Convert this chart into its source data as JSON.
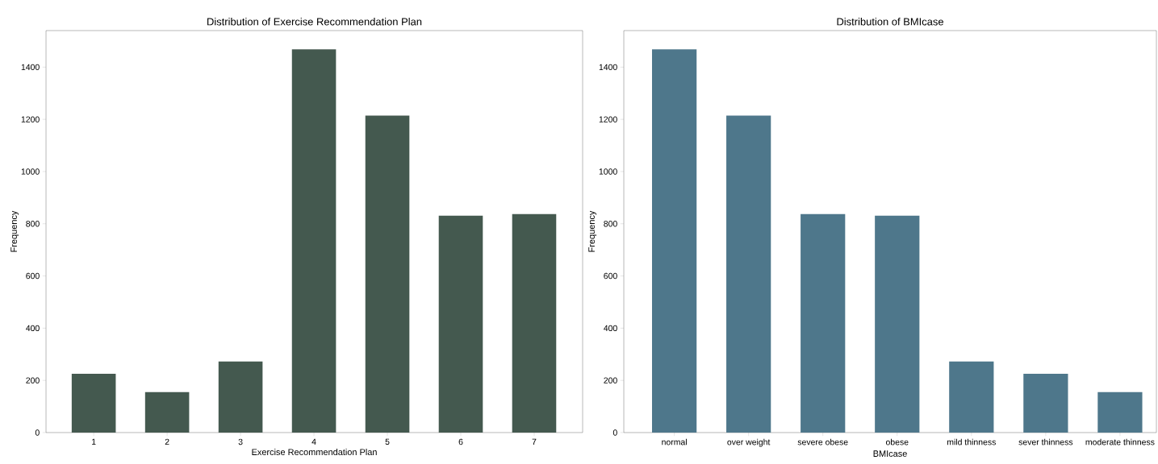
{
  "chart_data": [
    {
      "type": "bar",
      "title": "Distribution of Exercise Recommendation Plan",
      "xlabel": "Exercise Recommendation Plan",
      "ylabel": "Frequency",
      "categories": [
        "1",
        "2",
        "3",
        "4",
        "5",
        "6",
        "7"
      ],
      "values": [
        225,
        155,
        272,
        1468,
        1214,
        831,
        837
      ],
      "color": "#44594f",
      "ylim": [
        0,
        1540
      ],
      "yticks": [
        0,
        200,
        400,
        600,
        800,
        1000,
        1200,
        1400
      ],
      "grid": false
    },
    {
      "type": "bar",
      "title": "Distribution of BMIcase",
      "xlabel": "BMIcase",
      "ylabel": "Frequency",
      "categories": [
        "normal",
        "over weight",
        "severe obese",
        "obese",
        "mild thinness",
        "sever thinness",
        "moderate thinness"
      ],
      "values": [
        1468,
        1214,
        837,
        831,
        272,
        225,
        155
      ],
      "color": "#4e778b",
      "ylim": [
        0,
        1540
      ],
      "yticks": [
        0,
        200,
        400,
        600,
        800,
        1000,
        1200,
        1400
      ],
      "grid": false
    }
  ]
}
